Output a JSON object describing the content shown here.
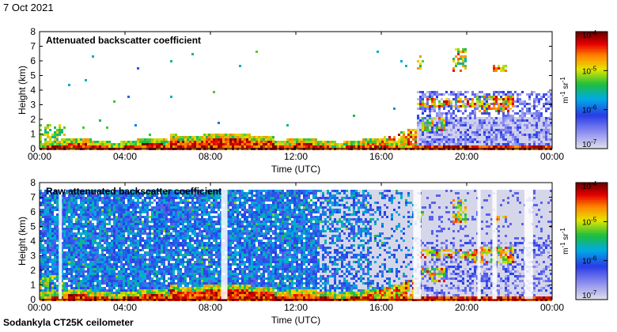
{
  "header": {
    "date": "7 Oct 2021"
  },
  "footer": {
    "instrument": "Sodankyla CT25K ceilometer"
  },
  "chart_data": [
    {
      "type": "heatmap",
      "title": "Attenuated backscatter coefficient",
      "xlabel": "Time (UTC)",
      "ylabel": "Height (km)",
      "xticks": [
        "00:00",
        "04:00",
        "08:00",
        "12:00",
        "16:00",
        "20:00",
        "00:00"
      ],
      "xlim_hours": [
        0,
        24
      ],
      "ylim": [
        0,
        8
      ],
      "yticks": [
        0,
        1,
        2,
        3,
        4,
        5,
        6,
        7,
        8
      ],
      "colorbar": {
        "label": "m-1 sr-1",
        "scale": "log",
        "range": [
          1e-07,
          0.0001
        ],
        "ticks": [
          "10-7",
          "10-6",
          "10-5",
          "10-4"
        ]
      }
    },
    {
      "type": "heatmap",
      "title": "Raw attenuated backscatter coefficient",
      "xlabel": "Time (UTC)",
      "ylabel": "Height (km)",
      "xticks": [
        "00:00",
        "04:00",
        "08:00",
        "12:00",
        "16:00",
        "20:00",
        "00:00"
      ],
      "xlim_hours": [
        0,
        24
      ],
      "ylim": [
        0,
        8
      ],
      "yticks": [
        0,
        1,
        2,
        3,
        4,
        5,
        6,
        7,
        8
      ],
      "colorbar": {
        "label": "m-1 sr-1",
        "scale": "log",
        "range": [
          1e-07,
          0.0001
        ],
        "ticks": [
          "10-7",
          "10-6",
          "10-5",
          "10-4"
        ]
      }
    }
  ]
}
